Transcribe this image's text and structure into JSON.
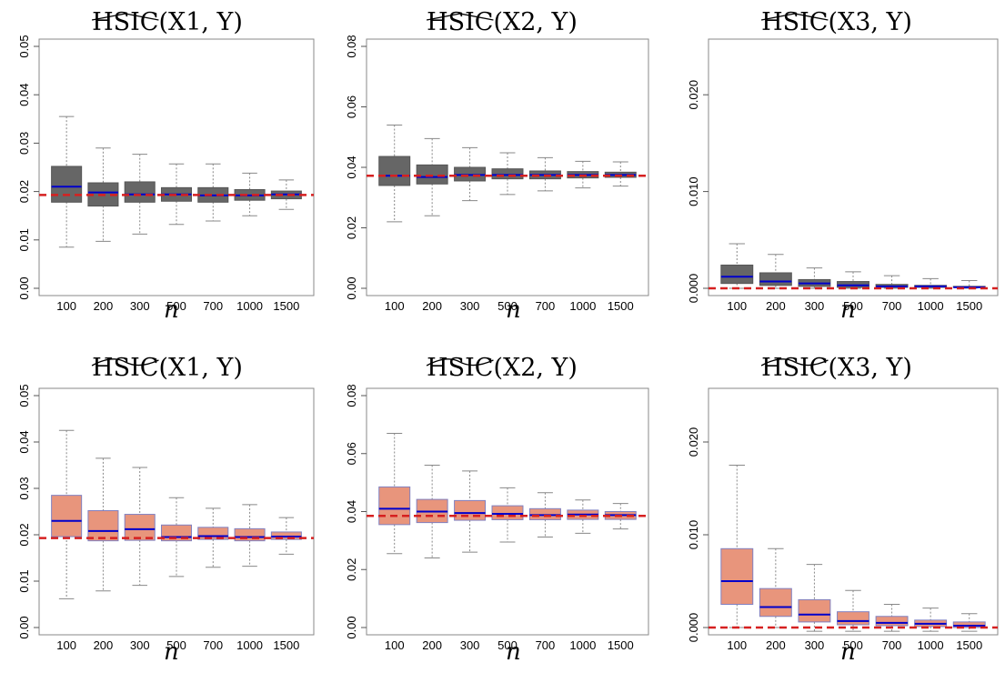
{
  "colors": {
    "top_box": "#666666",
    "bottom_box": "#e8957c",
    "bottom_box_border": "#8080c0",
    "median": "#0000cc",
    "reference_line": "#d62020",
    "whisker": "#888888"
  },
  "chart_data": [
    {
      "type": "boxplot",
      "id": "p11",
      "title_text": "HSIC",
      "title_args": "(X1, Y)",
      "accent": "hat",
      "xlabel": "n",
      "categories": [
        "100",
        "200",
        "300",
        "500",
        "700",
        "1000",
        "1500"
      ],
      "ylim": [
        0,
        0.05
      ],
      "yticks": [
        "0.00",
        "0.01",
        "0.02",
        "0.03",
        "0.04",
        "0.05"
      ],
      "ytick_values": [
        0,
        0.01,
        0.02,
        0.03,
        0.04,
        0.05
      ],
      "reference": 0.0193,
      "boxes": [
        {
          "min": 0.0085,
          "q1": 0.0178,
          "median": 0.021,
          "q3": 0.0252,
          "max": 0.0355
        },
        {
          "min": 0.0097,
          "q1": 0.017,
          "median": 0.0198,
          "q3": 0.0218,
          "max": 0.029
        },
        {
          "min": 0.0112,
          "q1": 0.0178,
          "median": 0.0194,
          "q3": 0.022,
          "max": 0.0277
        },
        {
          "min": 0.0132,
          "q1": 0.018,
          "median": 0.0194,
          "q3": 0.0208,
          "max": 0.0257
        },
        {
          "min": 0.0139,
          "q1": 0.0178,
          "median": 0.0192,
          "q3": 0.0208,
          "max": 0.0257
        },
        {
          "min": 0.015,
          "q1": 0.0182,
          "median": 0.0192,
          "q3": 0.0204,
          "max": 0.0238
        },
        {
          "min": 0.0163,
          "q1": 0.0185,
          "median": 0.0194,
          "q3": 0.0201,
          "max": 0.0224
        }
      ]
    },
    {
      "type": "boxplot",
      "id": "p12",
      "title_text": "HSIC",
      "title_args": "(X2, Y)",
      "accent": "hat",
      "xlabel": "n",
      "categories": [
        "100",
        "200",
        "300",
        "500",
        "700",
        "1000",
        "1500"
      ],
      "ylim": [
        0,
        0.08
      ],
      "yticks": [
        "0.00",
        "0.02",
        "0.04",
        "0.06",
        "0.08"
      ],
      "ytick_values": [
        0,
        0.02,
        0.04,
        0.06,
        0.08
      ],
      "reference": 0.0372,
      "boxes": [
        {
          "min": 0.022,
          "q1": 0.034,
          "median": 0.0372,
          "q3": 0.0436,
          "max": 0.054
        },
        {
          "min": 0.024,
          "q1": 0.0345,
          "median": 0.0368,
          "q3": 0.0408,
          "max": 0.0495
        },
        {
          "min": 0.029,
          "q1": 0.0355,
          "median": 0.0375,
          "q3": 0.04,
          "max": 0.0465
        },
        {
          "min": 0.031,
          "q1": 0.0362,
          "median": 0.0375,
          "q3": 0.0395,
          "max": 0.0448
        },
        {
          "min": 0.0322,
          "q1": 0.0362,
          "median": 0.0375,
          "q3": 0.0388,
          "max": 0.0432
        },
        {
          "min": 0.0332,
          "q1": 0.0365,
          "median": 0.0375,
          "q3": 0.0386,
          "max": 0.042
        },
        {
          "min": 0.0338,
          "q1": 0.0367,
          "median": 0.0375,
          "q3": 0.0384,
          "max": 0.0418
        }
      ]
    },
    {
      "type": "boxplot",
      "id": "p13",
      "title_text": "HSIC",
      "title_args": "(X3, Y)",
      "accent": "hat",
      "xlabel": "n",
      "categories": [
        "100",
        "200",
        "300",
        "500",
        "700",
        "1000",
        "1500"
      ],
      "ylim": [
        0,
        0.025
      ],
      "yticks": [
        "0.000",
        "0.010",
        "0.020"
      ],
      "ytick_values": [
        0,
        0.01,
        0.02
      ],
      "reference": 0.0,
      "boxes": [
        {
          "min": 0.0,
          "q1": 0.0005,
          "median": 0.0012,
          "q3": 0.0024,
          "max": 0.0046
        },
        {
          "min": 0.0,
          "q1": 0.0003,
          "median": 0.0007,
          "q3": 0.0016,
          "max": 0.0035
        },
        {
          "min": 0.0,
          "q1": 0.0002,
          "median": 0.0005,
          "q3": 0.0009,
          "max": 0.0021
        },
        {
          "min": 0.0,
          "q1": 0.0001,
          "median": 0.0003,
          "q3": 0.0007,
          "max": 0.0017
        },
        {
          "min": 0.0,
          "q1": 0.0001,
          "median": 0.0002,
          "q3": 0.0004,
          "max": 0.0013
        },
        {
          "min": 0.0,
          "q1": 0.0001,
          "median": 0.0002,
          "q3": 0.0003,
          "max": 0.001
        },
        {
          "min": 0.0,
          "q1": 0.0001,
          "median": 0.0001,
          "q3": 0.0002,
          "max": 0.0008
        }
      ]
    },
    {
      "type": "boxplot",
      "id": "p21",
      "title_text": "HSIC",
      "title_args": "(X1, Y)",
      "accent": "tilde",
      "xlabel": "n",
      "categories": [
        "100",
        "200",
        "300",
        "500",
        "700",
        "1000",
        "1500"
      ],
      "ylim": [
        0,
        0.05
      ],
      "yticks": [
        "0.00",
        "0.01",
        "0.02",
        "0.03",
        "0.04",
        "0.05"
      ],
      "ytick_values": [
        0,
        0.01,
        0.02,
        0.03,
        0.04,
        0.05
      ],
      "reference": 0.0193,
      "boxes": [
        {
          "min": 0.0062,
          "q1": 0.0196,
          "median": 0.023,
          "q3": 0.0285,
          "max": 0.0425
        },
        {
          "min": 0.0079,
          "q1": 0.0187,
          "median": 0.0208,
          "q3": 0.0252,
          "max": 0.0365
        },
        {
          "min": 0.0091,
          "q1": 0.0188,
          "median": 0.0212,
          "q3": 0.0244,
          "max": 0.0345
        },
        {
          "min": 0.011,
          "q1": 0.0187,
          "median": 0.0195,
          "q3": 0.0221,
          "max": 0.028
        },
        {
          "min": 0.013,
          "q1": 0.019,
          "median": 0.0197,
          "q3": 0.0216,
          "max": 0.0257
        },
        {
          "min": 0.0132,
          "q1": 0.0187,
          "median": 0.0195,
          "q3": 0.0213,
          "max": 0.0265
        },
        {
          "min": 0.0158,
          "q1": 0.019,
          "median": 0.0196,
          "q3": 0.0206,
          "max": 0.0237
        }
      ]
    },
    {
      "type": "boxplot",
      "id": "p22",
      "title_text": "HSIC",
      "title_args": "(X2, Y)",
      "accent": "tilde",
      "xlabel": "n",
      "categories": [
        "100",
        "200",
        "300",
        "500",
        "700",
        "1000",
        "1500"
      ],
      "ylim": [
        0,
        0.08
      ],
      "yticks": [
        "0.00",
        "0.02",
        "0.04",
        "0.06",
        "0.08"
      ],
      "ytick_values": [
        0,
        0.02,
        0.04,
        0.06,
        0.08
      ],
      "reference": 0.0385,
      "boxes": [
        {
          "min": 0.0255,
          "q1": 0.0355,
          "median": 0.041,
          "q3": 0.0485,
          "max": 0.067
        },
        {
          "min": 0.024,
          "q1": 0.0362,
          "median": 0.04,
          "q3": 0.0442,
          "max": 0.056
        },
        {
          "min": 0.026,
          "q1": 0.037,
          "median": 0.0395,
          "q3": 0.0438,
          "max": 0.054
        },
        {
          "min": 0.0295,
          "q1": 0.0372,
          "median": 0.0392,
          "q3": 0.042,
          "max": 0.0482
        },
        {
          "min": 0.0312,
          "q1": 0.0372,
          "median": 0.0388,
          "q3": 0.041,
          "max": 0.0465
        },
        {
          "min": 0.0325,
          "q1": 0.0373,
          "median": 0.039,
          "q3": 0.0405,
          "max": 0.044
        },
        {
          "min": 0.034,
          "q1": 0.0373,
          "median": 0.0388,
          "q3": 0.04,
          "max": 0.0428
        }
      ]
    },
    {
      "type": "boxplot",
      "id": "p23",
      "title_text": "HSIC",
      "title_args": "(X3, Y)",
      "accent": "tilde",
      "xlabel": "n",
      "categories": [
        "100",
        "200",
        "300",
        "500",
        "700",
        "1000",
        "1500"
      ],
      "ylim": [
        0,
        0.025
      ],
      "yticks": [
        "0.000",
        "0.010",
        "0.020"
      ],
      "ytick_values": [
        0,
        0.01,
        0.02
      ],
      "reference": 0.0,
      "boxes": [
        {
          "min": 0.0,
          "q1": 0.0025,
          "median": 0.005,
          "q3": 0.0085,
          "max": 0.0175
        },
        {
          "min": 0.0,
          "q1": 0.0012,
          "median": 0.0022,
          "q3": 0.0042,
          "max": 0.0085
        },
        {
          "min": -0.0004,
          "q1": 0.0006,
          "median": 0.0014,
          "q3": 0.003,
          "max": 0.0068
        },
        {
          "min": -0.0004,
          "q1": 0.0003,
          "median": 0.0007,
          "q3": 0.0017,
          "max": 0.004
        },
        {
          "min": -0.0004,
          "q1": 0.0002,
          "median": 0.0005,
          "q3": 0.0012,
          "max": 0.0025
        },
        {
          "min": -0.0004,
          "q1": 0.0001,
          "median": 0.0004,
          "q3": 0.0008,
          "max": 0.0021
        },
        {
          "min": -0.0004,
          "q1": 0.0,
          "median": 0.0002,
          "q3": 0.0006,
          "max": 0.0015
        }
      ]
    }
  ]
}
